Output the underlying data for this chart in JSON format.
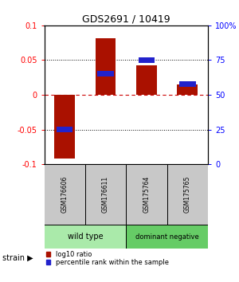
{
  "title": "GDS2691 / 10419",
  "samples": [
    "GSM176606",
    "GSM176611",
    "GSM175764",
    "GSM175765"
  ],
  "log10_ratio": [
    -0.092,
    0.082,
    0.042,
    0.015
  ],
  "percentile_rank": [
    25,
    65,
    75,
    58
  ],
  "ylim": [
    -0.1,
    0.1
  ],
  "yticks_left": [
    -0.1,
    -0.05,
    0,
    0.05,
    0.1
  ],
  "yticks_right": [
    0,
    25,
    50,
    75,
    100
  ],
  "bar_width": 0.5,
  "blue_bar_width": 0.4,
  "blue_bar_height": 0.008,
  "red_color": "#AA1100",
  "blue_color": "#2222CC",
  "zero_line_color": "#CC0000",
  "dot_line_color": "#000000",
  "background_color": "#ffffff",
  "sample_box_color": "#C8C8C8",
  "group1_color": "#AAEAAA",
  "group2_color": "#66CC66",
  "group1_label": "wild type",
  "group2_label": "dominant negative",
  "legend_red": "log10 ratio",
  "legend_blue": "percentile rank within the sample"
}
